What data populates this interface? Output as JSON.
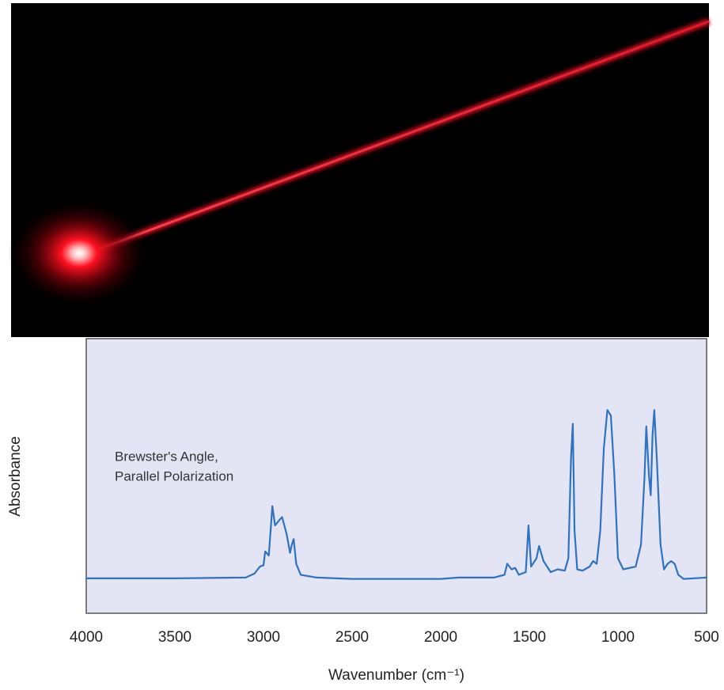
{
  "chart_data": {
    "type": "line",
    "x_label": "Wavenumber (cm⁻¹)",
    "y_label": "Absorbance",
    "annotation": [
      "Brewster's Angle,",
      "Parallel Polarization"
    ],
    "xlim": [
      4000,
      500
    ],
    "xticks": [
      4000,
      3500,
      3000,
      2500,
      2000,
      1500,
      1000,
      500
    ],
    "ylim": [
      0,
      1
    ],
    "grid": false,
    "series": [
      {
        "color": "#2f73c0",
        "x": [
          4000,
          3500,
          3100,
          3050,
          3020,
          3000,
          2990,
          2970,
          2960,
          2950,
          2935,
          2910,
          2895,
          2870,
          2850,
          2840,
          2830,
          2815,
          2790,
          2700,
          2500,
          2000,
          1900,
          1700,
          1640,
          1625,
          1600,
          1580,
          1560,
          1520,
          1505,
          1490,
          1460,
          1445,
          1420,
          1400,
          1380,
          1340,
          1300,
          1280,
          1265,
          1255,
          1245,
          1230,
          1200,
          1160,
          1140,
          1120,
          1100,
          1080,
          1060,
          1040,
          1020,
          1000,
          970,
          900,
          870,
          850,
          840,
          825,
          815,
          805,
          795,
          780,
          760,
          740,
          720,
          700,
          680,
          660,
          630,
          500
        ],
        "values": [
          0.127,
          0.127,
          0.13,
          0.145,
          0.17,
          0.175,
          0.225,
          0.21,
          0.3,
          0.39,
          0.32,
          0.34,
          0.35,
          0.29,
          0.22,
          0.25,
          0.27,
          0.18,
          0.14,
          0.13,
          0.125,
          0.125,
          0.13,
          0.13,
          0.14,
          0.18,
          0.16,
          0.165,
          0.14,
          0.15,
          0.32,
          0.17,
          0.2,
          0.245,
          0.19,
          0.17,
          0.15,
          0.16,
          0.155,
          0.2,
          0.56,
          0.69,
          0.3,
          0.16,
          0.155,
          0.17,
          0.19,
          0.18,
          0.3,
          0.6,
          0.74,
          0.72,
          0.5,
          0.2,
          0.16,
          0.17,
          0.25,
          0.5,
          0.68,
          0.5,
          0.43,
          0.65,
          0.74,
          0.55,
          0.25,
          0.16,
          0.18,
          0.19,
          0.18,
          0.14,
          0.125,
          0.13
        ]
      }
    ]
  }
}
